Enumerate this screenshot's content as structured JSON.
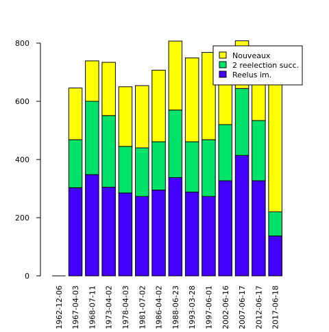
{
  "chart_data": {
    "type": "bar",
    "stacked": true,
    "categories": [
      "1962-12-06",
      "1967-04-03",
      "1968-07-11",
      "1973-04-02",
      "1978-04-03",
      "1981-07-02",
      "1986-04-02",
      "1988-06-23",
      "1993-03-28",
      "1997-06-01",
      "2002-06-16",
      "2007-06-17",
      "2012-06-17",
      "2017-06-18"
    ],
    "series": [
      {
        "name": "Reelus im.",
        "color": "#4400ff",
        "values": [
          0,
          303,
          348,
          305,
          285,
          273,
          295,
          338,
          288,
          273,
          327,
          414,
          327,
          137
        ]
      },
      {
        "name": "2 reelection succ.",
        "color": "#00e36a",
        "values": [
          0,
          165,
          252,
          246,
          160,
          167,
          166,
          232,
          173,
          195,
          193,
          230,
          207,
          83
        ]
      },
      {
        "name": "Nouveaux",
        "color": "#ffff00",
        "values": [
          0,
          178,
          139,
          183,
          205,
          214,
          246,
          237,
          288,
          300,
          257,
          164,
          155,
          467
        ]
      }
    ],
    "ylim": [
      0,
      800
    ],
    "yticks": [
      0,
      200,
      400,
      600,
      800
    ],
    "grid": false,
    "legend_position": "top-right",
    "title": "",
    "xlabel": "",
    "ylabel": ""
  }
}
